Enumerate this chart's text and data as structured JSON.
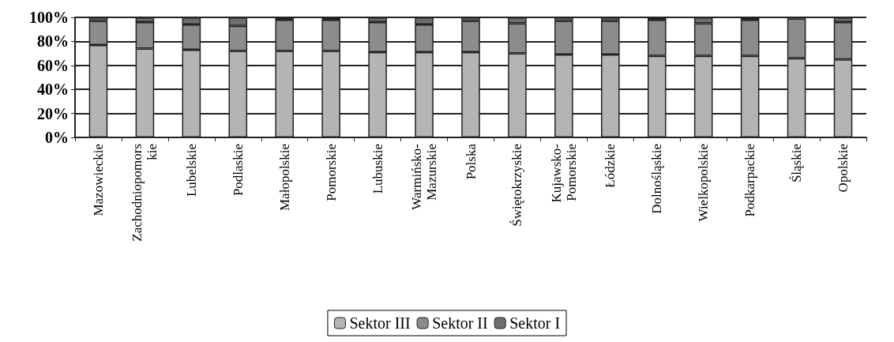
{
  "chart_data": {
    "type": "bar",
    "stacked": true,
    "categories": [
      "Mazowieckie",
      "Zachodniopomorskie",
      "Lubelskie",
      "Podlaskie",
      "Małopolskie",
      "Pomorskie",
      "Lubuskie",
      "Warmińsko-Mazurskie",
      "Polska",
      "Świętokrzyskie",
      "Kujawsko-Pomorskie",
      "Łódzkie",
      "Dolnośląskie",
      "Wielkopolskie",
      "Podkarpackie",
      "Śląskie",
      "Opolskie"
    ],
    "series": [
      {
        "name": "Sektor III",
        "color": "#b4b4b4",
        "values": [
          77,
          74,
          73,
          72,
          72,
          72,
          71,
          71,
          71,
          70,
          69,
          69,
          68,
          68,
          68,
          66,
          65
        ]
      },
      {
        "name": "Sektor II",
        "color": "#8c8c8c",
        "values": [
          20,
          22,
          21,
          21,
          26,
          26,
          25,
          23,
          26,
          25,
          28,
          28,
          30,
          27,
          30,
          33,
          31
        ]
      },
      {
        "name": "Sektor I",
        "color": "#6e6e6e",
        "values": [
          3,
          4,
          6,
          7,
          2,
          2,
          4,
          6,
          3,
          5,
          3,
          3,
          2,
          5,
          2,
          1,
          4
        ]
      }
    ],
    "ylim": [
      0,
      100
    ],
    "yticks": [
      {
        "value": 0,
        "label": "0%"
      },
      {
        "value": 20,
        "label": "20%"
      },
      {
        "value": 40,
        "label": "40%"
      },
      {
        "value": 60,
        "label": "60%"
      },
      {
        "value": 80,
        "label": "80%"
      },
      {
        "value": 100,
        "label": "100%"
      }
    ],
    "grid": "y",
    "legend": "bottom"
  }
}
